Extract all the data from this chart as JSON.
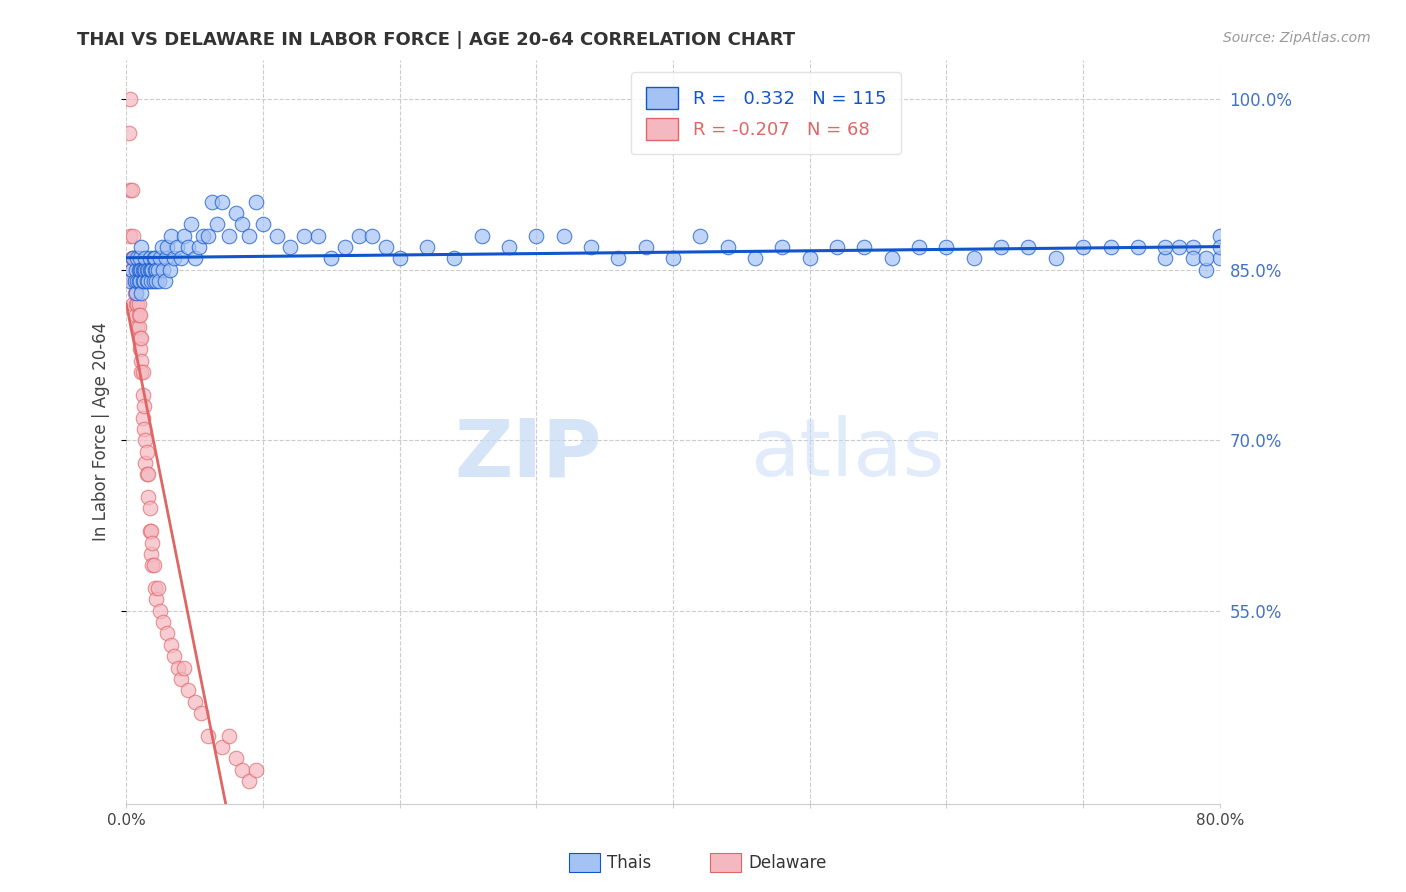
{
  "title": "THAI VS DELAWARE IN LABOR FORCE | AGE 20-64 CORRELATION CHART",
  "source": "Source: ZipAtlas.com",
  "ylabel": "In Labor Force | Age 20-64",
  "xmin": 0.0,
  "xmax": 0.8,
  "ymin": 0.38,
  "ymax": 1.035,
  "ytick_right_vals": [
    1.0,
    0.85,
    0.7,
    0.55
  ],
  "ytick_right_labels": [
    "100.0%",
    "85.0%",
    "70.0%",
    "55.0%"
  ],
  "blue_R": 0.332,
  "blue_N": 115,
  "pink_R": -0.207,
  "pink_N": 68,
  "blue_color": "#a4c2f4",
  "pink_color": "#f4b8c1",
  "blue_line_color": "#1155cc",
  "pink_line_color": "#e06666",
  "pink_line_dash_color": "#cccccc",
  "legend_label_blue": "Thais",
  "legend_label_pink": "Delaware",
  "watermark_zip": "ZIP",
  "watermark_atlas": "atlas",
  "blue_scatter_x": [
    0.003,
    0.004,
    0.005,
    0.006,
    0.007,
    0.007,
    0.008,
    0.008,
    0.009,
    0.009,
    0.01,
    0.01,
    0.01,
    0.011,
    0.011,
    0.011,
    0.012,
    0.012,
    0.013,
    0.013,
    0.014,
    0.014,
    0.015,
    0.015,
    0.016,
    0.016,
    0.017,
    0.017,
    0.018,
    0.018,
    0.019,
    0.02,
    0.02,
    0.021,
    0.021,
    0.022,
    0.022,
    0.023,
    0.024,
    0.025,
    0.026,
    0.027,
    0.028,
    0.029,
    0.03,
    0.032,
    0.033,
    0.035,
    0.037,
    0.04,
    0.042,
    0.045,
    0.047,
    0.05,
    0.053,
    0.056,
    0.06,
    0.063,
    0.066,
    0.07,
    0.075,
    0.08,
    0.085,
    0.09,
    0.095,
    0.1,
    0.11,
    0.12,
    0.13,
    0.14,
    0.15,
    0.16,
    0.17,
    0.18,
    0.19,
    0.2,
    0.22,
    0.24,
    0.26,
    0.28,
    0.3,
    0.32,
    0.34,
    0.36,
    0.38,
    0.4,
    0.42,
    0.44,
    0.46,
    0.48,
    0.5,
    0.52,
    0.54,
    0.56,
    0.58,
    0.6,
    0.62,
    0.64,
    0.66,
    0.68,
    0.7,
    0.72,
    0.74,
    0.76,
    0.78,
    0.8,
    0.8,
    0.8,
    0.79,
    0.81,
    0.82,
    0.78,
    0.79,
    0.77,
    0.76
  ],
  "blue_scatter_y": [
    0.84,
    0.85,
    0.86,
    0.84,
    0.85,
    0.83,
    0.86,
    0.84,
    0.85,
    0.84,
    0.84,
    0.86,
    0.85,
    0.83,
    0.85,
    0.87,
    0.84,
    0.85,
    0.85,
    0.84,
    0.85,
    0.86,
    0.84,
    0.85,
    0.85,
    0.84,
    0.86,
    0.85,
    0.84,
    0.85,
    0.85,
    0.86,
    0.84,
    0.85,
    0.86,
    0.85,
    0.84,
    0.85,
    0.84,
    0.86,
    0.87,
    0.85,
    0.84,
    0.86,
    0.87,
    0.85,
    0.88,
    0.86,
    0.87,
    0.86,
    0.88,
    0.87,
    0.89,
    0.86,
    0.87,
    0.88,
    0.88,
    0.91,
    0.89,
    0.91,
    0.88,
    0.9,
    0.89,
    0.88,
    0.91,
    0.89,
    0.88,
    0.87,
    0.88,
    0.88,
    0.86,
    0.87,
    0.88,
    0.88,
    0.87,
    0.86,
    0.87,
    0.86,
    0.88,
    0.87,
    0.88,
    0.88,
    0.87,
    0.86,
    0.87,
    0.86,
    0.88,
    0.87,
    0.86,
    0.87,
    0.86,
    0.87,
    0.87,
    0.86,
    0.87,
    0.87,
    0.86,
    0.87,
    0.87,
    0.86,
    0.87,
    0.87,
    0.87,
    0.86,
    0.87,
    0.88,
    0.86,
    0.87,
    0.85,
    0.86,
    0.87,
    0.86,
    0.86,
    0.87,
    0.87
  ],
  "pink_scatter_x": [
    0.002,
    0.003,
    0.003,
    0.003,
    0.004,
    0.004,
    0.004,
    0.005,
    0.005,
    0.005,
    0.005,
    0.006,
    0.006,
    0.006,
    0.007,
    0.007,
    0.007,
    0.008,
    0.008,
    0.008,
    0.009,
    0.009,
    0.009,
    0.01,
    0.01,
    0.01,
    0.011,
    0.011,
    0.011,
    0.012,
    0.012,
    0.012,
    0.013,
    0.013,
    0.014,
    0.014,
    0.015,
    0.015,
    0.016,
    0.016,
    0.017,
    0.017,
    0.018,
    0.018,
    0.019,
    0.019,
    0.02,
    0.021,
    0.022,
    0.023,
    0.025,
    0.027,
    0.03,
    0.033,
    0.035,
    0.038,
    0.04,
    0.042,
    0.045,
    0.05,
    0.055,
    0.06,
    0.07,
    0.075,
    0.08,
    0.085,
    0.09,
    0.095
  ],
  "pink_scatter_y": [
    0.97,
    1.0,
    0.92,
    0.88,
    0.92,
    0.86,
    0.85,
    0.88,
    0.86,
    0.84,
    0.82,
    0.86,
    0.84,
    0.83,
    0.84,
    0.82,
    0.81,
    0.82,
    0.8,
    0.84,
    0.8,
    0.82,
    0.81,
    0.79,
    0.81,
    0.78,
    0.77,
    0.79,
    0.76,
    0.74,
    0.76,
    0.72,
    0.71,
    0.73,
    0.7,
    0.68,
    0.69,
    0.67,
    0.65,
    0.67,
    0.64,
    0.62,
    0.62,
    0.6,
    0.61,
    0.59,
    0.59,
    0.57,
    0.56,
    0.57,
    0.55,
    0.54,
    0.53,
    0.52,
    0.51,
    0.5,
    0.49,
    0.5,
    0.48,
    0.47,
    0.46,
    0.44,
    0.43,
    0.44,
    0.42,
    0.41,
    0.4,
    0.41
  ]
}
